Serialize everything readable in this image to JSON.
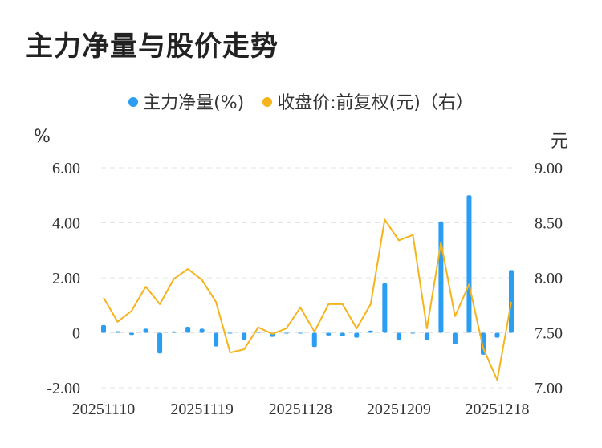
{
  "title": "主力净量与股价走势",
  "legend": {
    "flow_label": "主力净量(%)",
    "price_label": "收盘价:前复权(元)（右）"
  },
  "units": {
    "left": "%",
    "right": "元"
  },
  "colors": {
    "bar": "#2b9df2",
    "line": "#f5b41b",
    "grid": "#e3e3e3",
    "text": "#333333"
  },
  "chart_data": {
    "type": "bar+line",
    "title": "主力净量与股价走势",
    "x_tick_labels": [
      "20251110",
      "20251119",
      "20251128",
      "20251209",
      "20251218"
    ],
    "left_axis": {
      "unit": "%",
      "ylim": [
        -2,
        6
      ],
      "ticks": [
        "6.00",
        "4.00",
        "2.00",
        "0",
        "-2.00"
      ]
    },
    "right_axis": {
      "unit": "元",
      "ylim": [
        7.0,
        9.0
      ],
      "ticks": [
        "9.00",
        "8.50",
        "8.00",
        "7.50",
        "7.00"
      ]
    },
    "grid": true,
    "legend_position": "top-center",
    "series": [
      {
        "name": "主力净量(%)",
        "type": "bar",
        "axis": "left",
        "values": [
          0.28,
          0.06,
          -0.08,
          0.15,
          -0.75,
          0.05,
          0.22,
          0.15,
          -0.5,
          -0.03,
          -0.25,
          0.04,
          -0.15,
          -0.03,
          -0.03,
          -0.52,
          -0.1,
          -0.12,
          -0.18,
          0.08,
          1.8,
          -0.25,
          -0.03,
          -0.25,
          4.05,
          -0.42,
          5.0,
          -0.8,
          -0.18,
          2.28
        ]
      },
      {
        "name": "收盘价:前复权(元)（右）",
        "type": "line",
        "axis": "right",
        "values": [
          7.82,
          7.6,
          7.7,
          7.92,
          7.76,
          7.99,
          8.08,
          7.98,
          7.78,
          7.32,
          7.35,
          7.55,
          7.49,
          7.54,
          7.73,
          7.51,
          7.76,
          7.76,
          7.54,
          7.76,
          8.53,
          8.34,
          8.39,
          7.54,
          8.32,
          7.65,
          7.94,
          7.36,
          7.07,
          7.78
        ]
      }
    ]
  }
}
